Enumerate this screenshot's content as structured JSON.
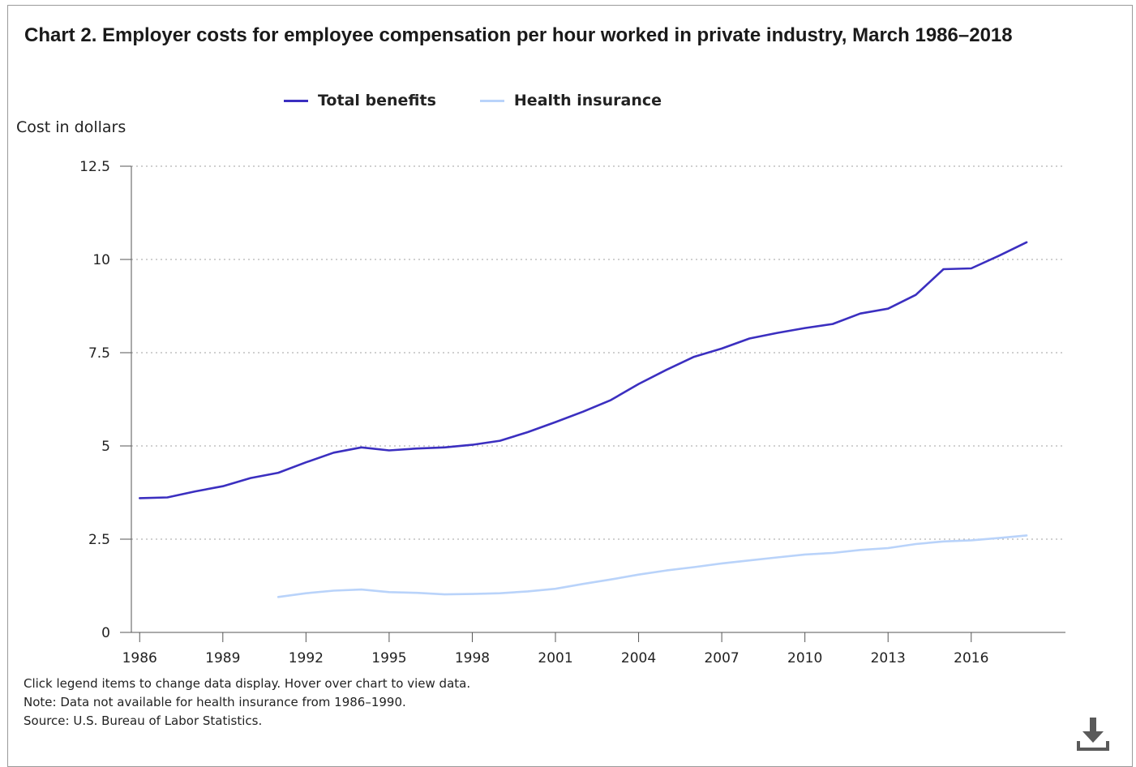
{
  "title": "Chart 2. Employer costs for employee compensation per hour worked in private industry, March 1986–2018",
  "notes": [
    "Click legend items to change data display. Hover over chart to view data.",
    "Note: Data not available for health insurance from 1986–1990.",
    "Source: U.S. Bureau of Labor Statistics."
  ],
  "icons": {
    "download": "download-icon"
  },
  "chart_data": {
    "type": "line",
    "title": "Chart 2. Employer costs for employee compensation per hour worked in private industry, March 1986–2018",
    "xlabel": "",
    "ylabel": "Cost in dollars",
    "xlim": [
      1985.7,
      2019.4
    ],
    "ylim": [
      0,
      12.5
    ],
    "xticks": [
      1986,
      1989,
      1992,
      1995,
      1998,
      2001,
      2004,
      2007,
      2010,
      2013,
      2016
    ],
    "yticks": [
      0,
      2.5,
      5,
      7.5,
      10,
      12.5
    ],
    "ytick_labels": [
      "0",
      "2.5",
      "5",
      "7.5",
      "10",
      "12.5"
    ],
    "grid": "horizontal dotted",
    "legend_position": "top",
    "series": [
      {
        "name": "Total benefits",
        "color": "#3b2fc0",
        "x": [
          1986,
          1987,
          1988,
          1989,
          1990,
          1991,
          1992,
          1993,
          1994,
          1995,
          1996,
          1997,
          1998,
          1999,
          2000,
          2001,
          2002,
          2003,
          2004,
          2005,
          2006,
          2007,
          2008,
          2009,
          2010,
          2011,
          2012,
          2013,
          2014,
          2015,
          2016,
          2017,
          2018
        ],
        "values": [
          3.6,
          3.62,
          3.78,
          3.92,
          4.14,
          4.28,
          4.56,
          4.82,
          4.96,
          4.88,
          4.93,
          4.96,
          5.03,
          5.14,
          5.37,
          5.64,
          5.92,
          6.23,
          6.66,
          7.04,
          7.39,
          7.61,
          7.88,
          8.03,
          8.16,
          8.27,
          8.55,
          8.68,
          9.05,
          9.74,
          9.76,
          10.1,
          10.46
        ]
      },
      {
        "name": "Health insurance",
        "color": "#b9d3fa",
        "x": [
          1991,
          1992,
          1993,
          1994,
          1995,
          1996,
          1997,
          1998,
          1999,
          2000,
          2001,
          2002,
          2003,
          2004,
          2005,
          2006,
          2007,
          2008,
          2009,
          2010,
          2011,
          2012,
          2013,
          2014,
          2015,
          2016,
          2017,
          2018
        ],
        "values": [
          0.95,
          1.05,
          1.12,
          1.15,
          1.08,
          1.06,
          1.02,
          1.03,
          1.05,
          1.1,
          1.17,
          1.3,
          1.42,
          1.55,
          1.66,
          1.75,
          1.85,
          1.93,
          2.01,
          2.09,
          2.13,
          2.21,
          2.26,
          2.37,
          2.44,
          2.47,
          2.53,
          2.6
        ]
      }
    ]
  }
}
